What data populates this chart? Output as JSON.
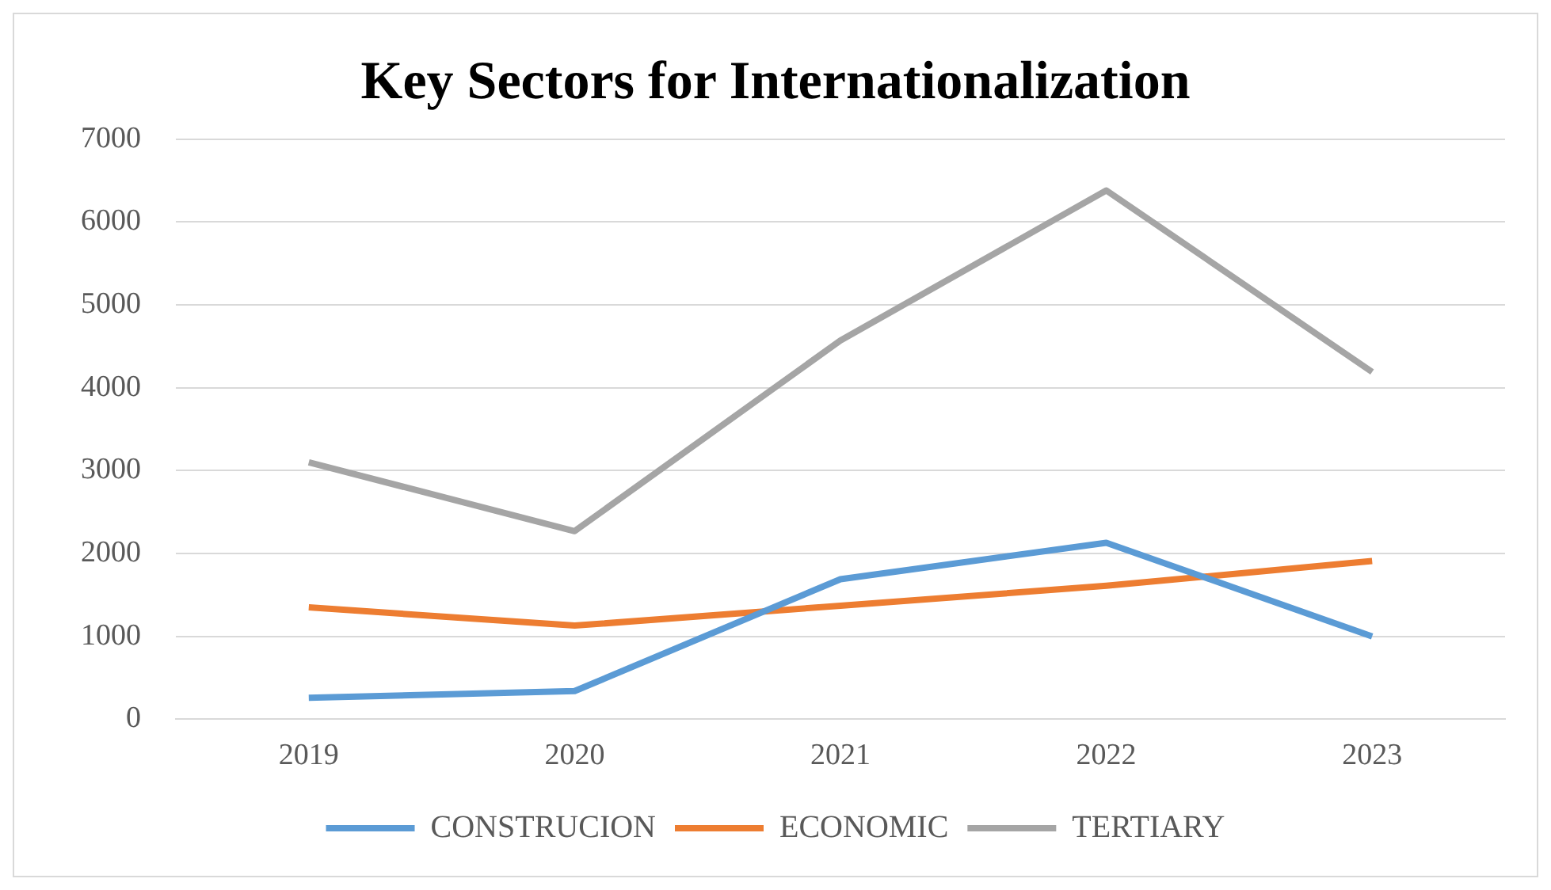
{
  "chart_data": {
    "type": "line",
    "title": "Key Sectors for Internationalization",
    "categories": [
      "2019",
      "2020",
      "2021",
      "2022",
      "2023"
    ],
    "series": [
      {
        "name": "CONSTRUCION",
        "color": "#5b9bd5",
        "values": [
          260,
          340,
          1690,
          2130,
          1000
        ]
      },
      {
        "name": "ECONOMIC",
        "color": "#ed7d31",
        "values": [
          1350,
          1130,
          1370,
          1610,
          1910
        ]
      },
      {
        "name": "TERTIARY",
        "color": "#a5a5a5",
        "values": [
          3100,
          2270,
          4570,
          6380,
          4190
        ]
      }
    ],
    "ylim": [
      0,
      7000
    ],
    "yticks": [
      0,
      1000,
      2000,
      3000,
      4000,
      5000,
      6000,
      7000
    ],
    "grid": "y",
    "legend": "bottom",
    "line_style": "solid"
  }
}
